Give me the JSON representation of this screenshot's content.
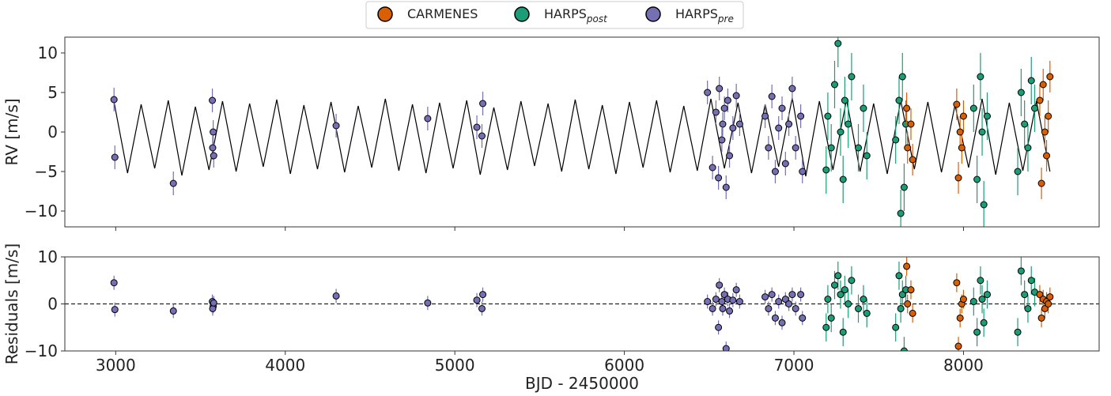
{
  "chart_data": [
    {
      "type": "scatter",
      "ylabel": "RV [m/s]",
      "xlim": [
        2700,
        8800
      ],
      "ylim": [
        -12,
        12
      ],
      "xticks": [
        3000,
        4000,
        5000,
        6000,
        7000,
        8000
      ],
      "yticks": [
        {
          "value": -10,
          "label": "−10"
        },
        {
          "value": -5,
          "label": "−5"
        },
        0,
        5,
        10
      ],
      "legend": "top",
      "series": [
        {
          "type": "line",
          "color": "#000000",
          "x": [
            2990,
            3070,
            3150,
            3230,
            3310,
            3390,
            3470,
            3550,
            3630,
            3710,
            3790,
            3870,
            3950,
            4030,
            4110,
            4190,
            4270,
            4350,
            4430,
            4510,
            4590,
            4670,
            4750,
            4830,
            4910,
            4990,
            5070,
            5150,
            5230,
            5310,
            5390,
            5470,
            5550,
            5630,
            5710,
            5790,
            5870,
            5950,
            6030,
            6110,
            6190,
            6270,
            6350,
            6430,
            6510,
            6590,
            6670,
            6750,
            6830,
            6910,
            6990,
            7070,
            7150,
            7230,
            7310,
            7390,
            7470,
            7550,
            7630,
            7710,
            7790,
            7870,
            7950,
            8030,
            8110,
            8190,
            8270,
            8350,
            8430,
            8510
          ],
          "values": [
            3.8,
            -5.2,
            3.5,
            -4.6,
            4.0,
            -5.5,
            3.2,
            -4.8,
            3.9,
            -5.0,
            3.6,
            -4.4,
            4.1,
            -5.3,
            3.4,
            -4.7,
            3.8,
            -5.1,
            3.3,
            -4.5,
            4.2,
            -4.9,
            3.5,
            -5.2,
            3.7,
            -4.6,
            4.0,
            -5.4,
            3.1,
            -4.8,
            3.9,
            -4.3,
            3.6,
            -5.0,
            4.1,
            -4.7,
            3.4,
            -5.3,
            3.8,
            -4.5,
            4.0,
            -5.1,
            3.3,
            -4.9,
            4.2,
            -4.6,
            3.7,
            -5.2,
            3.5,
            -4.4,
            4.3,
            -5.6,
            3.9,
            -4.8,
            4.1,
            -5.0,
            3.6,
            -5.3,
            4.0,
            -4.7,
            3.8,
            -5.1,
            3.4,
            -4.5,
            4.2,
            -5.4,
            3.7,
            -4.9,
            3.9,
            -5.0
          ]
        },
        {
          "type": "scatter",
          "name": "HARPS",
          "name_sub": "pre",
          "color": "#7570b3",
          "yerr": 1.5,
          "x": [
            2990,
            2995,
            3340,
            3570,
            3575,
            3572,
            3578,
            4300,
            4840,
            5130,
            5160,
            5165,
            6490,
            6520,
            6540,
            6555,
            6560,
            6575,
            6580,
            6590,
            6600,
            6610,
            6620,
            6640,
            6660,
            6680,
            6830,
            6850,
            6870,
            6890,
            6910,
            6930,
            6950,
            6970,
            6990,
            7010,
            7040,
            7050
          ],
          "values": [
            4.1,
            -3.2,
            -6.5,
            4.0,
            0.0,
            -2.0,
            -3.0,
            0.8,
            1.7,
            0.6,
            -0.5,
            3.6,
            5.0,
            -4.5,
            2.5,
            -5.8,
            5.5,
            -1.0,
            1.0,
            3.0,
            -7.0,
            4.0,
            -3.0,
            0.5,
            4.6,
            1.0,
            2.0,
            -2.0,
            4.5,
            -5.0,
            0.5,
            3.0,
            -4.0,
            1.0,
            5.5,
            -2.0,
            2.0,
            -5.0
          ]
        },
        {
          "type": "scatter",
          "name": "HARPS",
          "name_sub": "post",
          "color": "#1b9e77",
          "yerr": 3,
          "x": [
            7190,
            7200,
            7220,
            7240,
            7260,
            7275,
            7290,
            7300,
            7320,
            7340,
            7380,
            7410,
            7430,
            7600,
            7620,
            7630,
            7640,
            7650,
            7660,
            8060,
            8080,
            8100,
            8110,
            8120,
            8140,
            8320,
            8340,
            8360,
            8380,
            8400,
            8420
          ],
          "values": [
            -4.8,
            2.0,
            -2.0,
            6.0,
            11.2,
            0.0,
            -6.0,
            4.0,
            1.0,
            7.0,
            -2.0,
            3.0,
            -3.0,
            -1.0,
            4.0,
            -10.3,
            7.0,
            -7.0,
            1.0,
            3.0,
            -6.0,
            7.0,
            0.0,
            -9.2,
            2.0,
            -5.0,
            5.0,
            1.0,
            -2.0,
            6.5,
            3.0
          ]
        },
        {
          "type": "scatter",
          "name": "CARMENES",
          "color": "#d95f02",
          "yerr": 2,
          "x": [
            7665,
            7670,
            7690,
            7700,
            7960,
            7970,
            7980,
            7990,
            8000,
            8450,
            8460,
            8470,
            8480,
            8490,
            8500,
            8510
          ],
          "values": [
            3.0,
            -2.0,
            1.0,
            -3.5,
            3.5,
            -5.8,
            0.0,
            -2.0,
            2.0,
            4.0,
            -6.5,
            6.0,
            0.0,
            -3.0,
            2.0,
            7.0
          ]
        }
      ]
    },
    {
      "type": "scatter",
      "ylabel": "Residuals [m/s]",
      "xlabel": "BJD - 2450000",
      "xlim": [
        2700,
        8800
      ],
      "ylim": [
        -10,
        10
      ],
      "xticks": [
        3000,
        4000,
        5000,
        6000,
        7000,
        8000
      ],
      "yticks": [
        {
          "value": -10,
          "label": "−10"
        },
        0,
        10
      ],
      "hline": 0,
      "series": [
        {
          "type": "scatter",
          "color": "#7570b3",
          "yerr": 1.5,
          "x": [
            2990,
            2995,
            3340,
            3570,
            3575,
            3572,
            3578,
            4300,
            4840,
            5130,
            5160,
            5165,
            6490,
            6520,
            6540,
            6555,
            6560,
            6575,
            6580,
            6590,
            6600,
            6610,
            6620,
            6640,
            6660,
            6680,
            6830,
            6850,
            6870,
            6890,
            6910,
            6930,
            6950,
            6970,
            6990,
            7010,
            7040,
            7050
          ],
          "values": [
            4.5,
            -1.2,
            -1.5,
            0.5,
            -0.5,
            -1.0,
            0.2,
            1.7,
            0.2,
            0.8,
            -1.0,
            2.0,
            0.5,
            -1.0,
            1.0,
            -5.0,
            4.0,
            0.5,
            -1.0,
            2.0,
            -9.5,
            1.0,
            -1.5,
            0.8,
            3.0,
            0.5,
            1.5,
            -1.0,
            2.0,
            -3.0,
            0.5,
            -4.0,
            1.0,
            0.0,
            2.0,
            -1.0,
            2.0,
            -3.0
          ]
        },
        {
          "type": "scatter",
          "color": "#1b9e77",
          "yerr": 3,
          "x": [
            7190,
            7200,
            7220,
            7240,
            7260,
            7275,
            7290,
            7300,
            7320,
            7340,
            7380,
            7410,
            7430,
            7600,
            7620,
            7630,
            7640,
            7650,
            7660,
            8060,
            8080,
            8100,
            8110,
            8120,
            8140,
            8320,
            8340,
            8360,
            8380,
            8400,
            8420
          ],
          "values": [
            -5.0,
            1.0,
            -3.0,
            4.0,
            6.0,
            2.0,
            -6.0,
            3.0,
            0.0,
            5.0,
            -1.0,
            1.0,
            -2.0,
            -5.0,
            6.0,
            -1.0,
            2.0,
            -10.0,
            3.0,
            0.5,
            -6.0,
            5.0,
            1.0,
            -4.0,
            2.0,
            -6.0,
            7.0,
            2.0,
            -1.0,
            5.0,
            2.5
          ]
        },
        {
          "type": "scatter",
          "color": "#d95f02",
          "yerr": 2,
          "x": [
            7665,
            7670,
            7690,
            7700,
            7960,
            7970,
            7980,
            7990,
            8000,
            8450,
            8460,
            8470,
            8480,
            8490,
            8500,
            8510
          ],
          "values": [
            8.0,
            0.0,
            3.0,
            -2.0,
            4.5,
            -9.0,
            -3.0,
            0.0,
            1.0,
            2.0,
            -3.0,
            1.0,
            -1.0,
            0.5,
            0.0,
            1.5
          ]
        }
      ]
    }
  ]
}
